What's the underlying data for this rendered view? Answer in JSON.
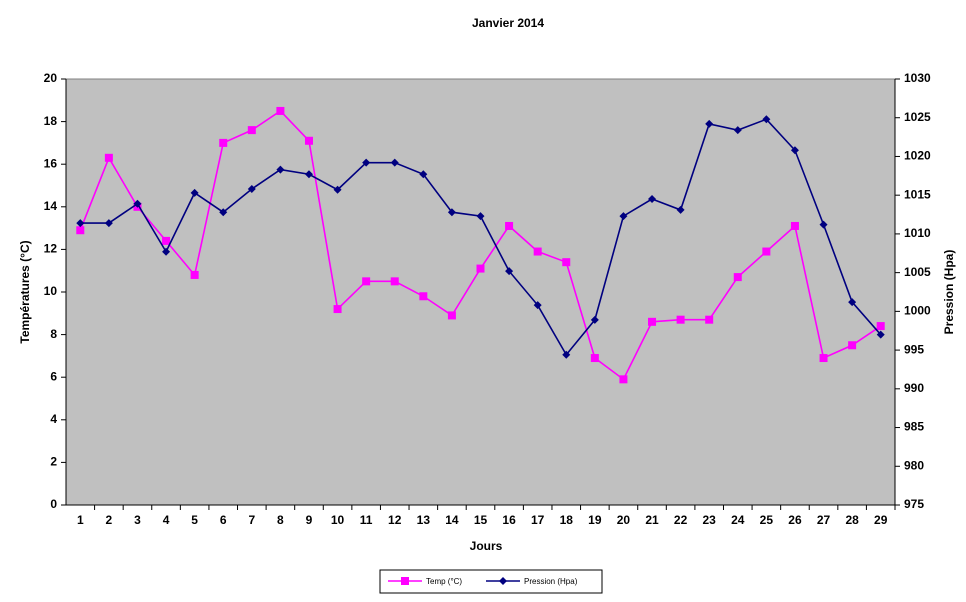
{
  "chart_data": {
    "type": "line",
    "title": "Janvier 2014",
    "x_label": "Jours",
    "y_label": "Températures (°C)",
    "y2_label": "Pression (Hpa)",
    "categories": [
      "1",
      "2",
      "3",
      "4",
      "5",
      "6",
      "7",
      "8",
      "9",
      "10",
      "11",
      "12",
      "13",
      "14",
      "15",
      "16",
      "17",
      "18",
      "19",
      "20",
      "21",
      "22",
      "23",
      "24",
      "25",
      "26",
      "27",
      "28",
      "29"
    ],
    "series": [
      {
        "name": "Temp (°C)",
        "color": "#ff00ff",
        "marker": "square",
        "axis": "y",
        "values": [
          12.9,
          16.3,
          14.0,
          12.4,
          10.8,
          17.0,
          17.6,
          18.5,
          17.1,
          9.2,
          10.5,
          10.5,
          9.8,
          8.9,
          11.1,
          13.1,
          11.9,
          11.4,
          6.9,
          5.9,
          8.6,
          8.7,
          8.7,
          10.7,
          11.9,
          13.1,
          6.9,
          7.5,
          8.4
        ]
      },
      {
        "name": "Pression (Hpa)",
        "color": "#000080",
        "marker": "diamond",
        "axis": "y2",
        "values": [
          1011.4,
          1011.4,
          1013.9,
          1007.7,
          1015.3,
          1012.8,
          1015.8,
          1018.3,
          1017.7,
          1015.7,
          1019.2,
          1019.2,
          1017.7,
          1012.8,
          1012.3,
          1005.2,
          1000.8,
          994.4,
          998.9,
          1012.3,
          1014.5,
          1013.1,
          1024.2,
          1023.4,
          1024.8,
          1020.8,
          1011.2,
          1001.2,
          997.0
        ]
      }
    ],
    "ylim": [
      0,
      20
    ],
    "yticks": [
      0,
      2,
      4,
      6,
      8,
      10,
      12,
      14,
      16,
      18,
      20
    ],
    "y2lim": [
      975,
      1030
    ],
    "y2ticks": [
      975,
      980,
      985,
      990,
      995,
      1000,
      1005,
      1010,
      1015,
      1020,
      1025,
      1030
    ],
    "plot_background": "#c0c0c0",
    "legend": "bottom"
  }
}
